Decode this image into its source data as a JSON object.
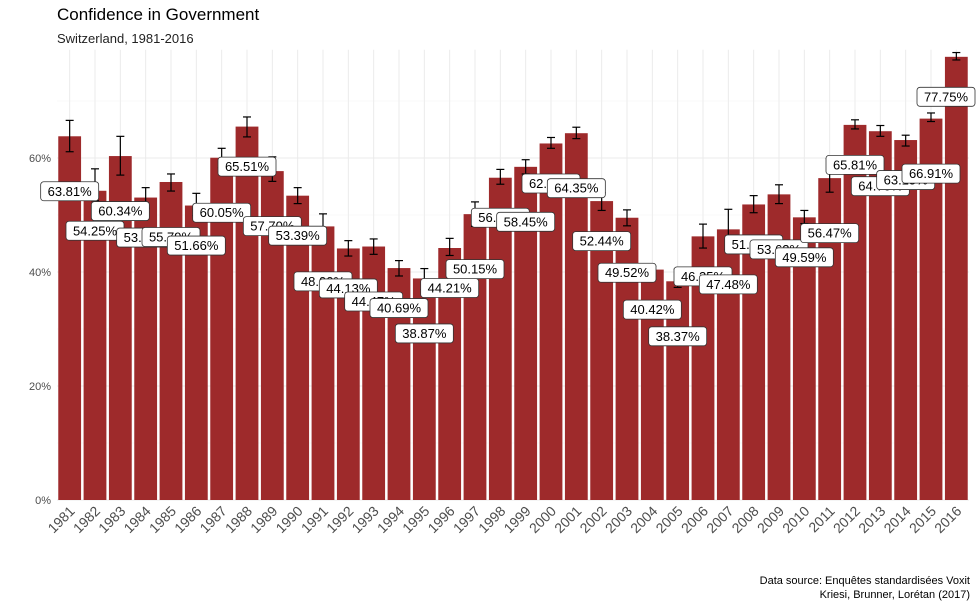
{
  "colors": {
    "bar": "#9e2a2b",
    "grid": "#ebebeb",
    "text": "#000000"
  },
  "chart_data": {
    "type": "bar",
    "title": "Confidence in Government",
    "subtitle": "Switzerland, 1981-2016",
    "caption_lines": [
      "Data source: Enquêtes standardisées Voxit",
      "Kriesi, Brunner, Lorétan (2017)"
    ],
    "xlabel": "",
    "ylabel": "",
    "ylim": [
      0,
      0.79
    ],
    "y_ticks": [
      0,
      0.2,
      0.4,
      0.6
    ],
    "y_tick_labels": [
      "0%",
      "20%",
      "40%",
      "60%"
    ],
    "grid": true,
    "categories": [
      "1981",
      "1982",
      "1983",
      "1984",
      "1985",
      "1986",
      "1987",
      "1988",
      "1989",
      "1990",
      "1991",
      "1992",
      "1993",
      "1994",
      "1995",
      "1996",
      "1997",
      "1998",
      "1999",
      "2000",
      "2001",
      "2002",
      "2003",
      "2004",
      "2005",
      "2006",
      "2007",
      "2008",
      "2009",
      "2010",
      "2011",
      "2012",
      "2013",
      "2014",
      "2015",
      "2016"
    ],
    "values": [
      0.6381,
      0.5425,
      0.6034,
      0.5306,
      0.5579,
      0.5166,
      0.6005,
      0.6551,
      0.577,
      0.5339,
      0.48,
      0.4413,
      0.4447,
      0.4069,
      0.3887,
      0.4421,
      0.5015,
      0.5654,
      0.5845,
      0.6255,
      0.6435,
      0.5244,
      0.4952,
      0.4042,
      0.3837,
      0.4625,
      0.4748,
      0.5185,
      0.5362,
      0.4959,
      0.5647,
      0.6581,
      0.647,
      0.6315,
      0.6691,
      0.7775
    ],
    "error_low": [
      0.611,
      0.525,
      0.57,
      0.512,
      0.542,
      0.499,
      0.583,
      0.637,
      0.559,
      0.52,
      0.458,
      0.428,
      0.431,
      0.393,
      0.369,
      0.429,
      0.48,
      0.554,
      0.572,
      0.617,
      0.634,
      0.508,
      0.481,
      0.387,
      0.373,
      0.442,
      0.44,
      0.504,
      0.52,
      0.485,
      0.54,
      0.651,
      0.638,
      0.621,
      0.664,
      0.772
    ],
    "error_high": [
      0.666,
      0.581,
      0.638,
      0.548,
      0.572,
      0.538,
      0.617,
      0.672,
      0.602,
      0.548,
      0.502,
      0.455,
      0.458,
      0.42,
      0.406,
      0.459,
      0.523,
      0.58,
      0.597,
      0.636,
      0.654,
      0.539,
      0.509,
      0.41,
      0.405,
      0.484,
      0.51,
      0.534,
      0.553,
      0.508,
      0.599,
      0.667,
      0.657,
      0.64,
      0.679,
      0.785
    ],
    "data_labels": [
      "63.81%",
      "54.25%",
      "60.34%",
      "53.06%",
      "55.79%",
      "51.66%",
      "60.05%",
      "65.51%",
      "57.70%",
      "53.39%",
      "48.00%",
      "44.13%",
      "44.47%",
      "40.69%",
      "38.87%",
      "44.21%",
      "50.15%",
      "56.54%",
      "58.45%",
      "62.55%",
      "64.35%",
      "52.44%",
      "49.52%",
      "40.42%",
      "38.37%",
      "46.25%",
      "47.48%",
      "51.85%",
      "53.62%",
      "49.59%",
      "56.47%",
      "65.81%",
      "64.70%",
      "63.15%",
      "66.91%",
      "77.75%"
    ]
  }
}
